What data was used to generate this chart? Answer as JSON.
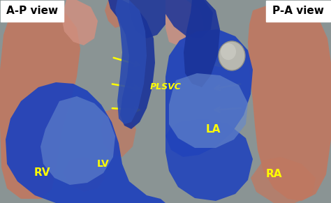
{
  "figsize": [
    4.74,
    2.91
  ],
  "dpi": 100,
  "bg_color": "#8a9494",
  "title_left": "A-P view",
  "title_right": "P-A view",
  "label_PLSVC": "PLSVC",
  "label_RV": "RV",
  "label_LV": "LV",
  "label_LA": "LA",
  "label_RA": "RA",
  "yellow": "#FFFF00",
  "white": "#FFFFFF",
  "black": "#000000",
  "blue_heart": "#2244bb",
  "blue_dark": "#1a3399",
  "blue_vessel": "#2a4ab0",
  "pink_vessel": "#c07860",
  "pink_light": "#d09080",
  "gray_bg": "#8a9494",
  "title_box_color": "#FFFFFF",
  "title_text_color": "#000000",
  "pacemaker_color": "#aaaaaa",
  "blue_pale": "#6688cc"
}
